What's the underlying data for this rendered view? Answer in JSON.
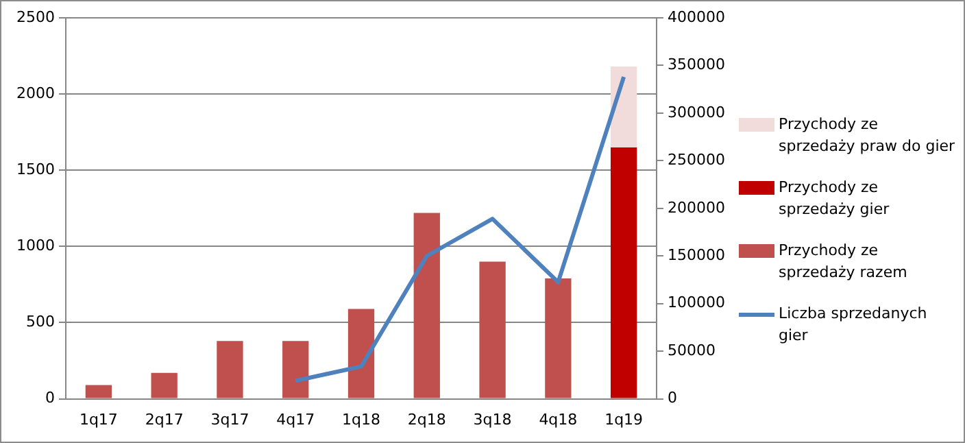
{
  "chart_data": {
    "type": "bar",
    "stacked": true,
    "grid": "y",
    "legend": "right",
    "marker": "none",
    "categories": [
      "1q17",
      "2q17",
      "3q17",
      "4q17",
      "1q18",
      "2q18",
      "3q18",
      "4q18",
      "1q19"
    ],
    "series": [
      {
        "name": "Przychody ze sprzedaży razem",
        "color": "#c0504d",
        "values": [
          90,
          170,
          380,
          380,
          590,
          1220,
          900,
          790,
          null
        ]
      },
      {
        "name": "Przychody ze sprzedaży gier",
        "color": "#c00000",
        "values": [
          null,
          null,
          null,
          null,
          null,
          null,
          null,
          null,
          1650
        ]
      },
      {
        "name": "Przychody ze sprzedaży praw do gier",
        "color": "#f2dcdb",
        "values": [
          null,
          null,
          null,
          null,
          null,
          null,
          null,
          null,
          530
        ]
      },
      {
        "name": "Liczba sprzedanych gier",
        "type": "line",
        "axis": "y2",
        "color": "#4f81bd",
        "values": [
          null,
          null,
          null,
          19000,
          34000,
          150000,
          189000,
          122500,
          338000
        ]
      }
    ],
    "ylim": [
      0,
      2500
    ],
    "yticks": [
      0,
      500,
      1000,
      1500,
      2000,
      2500
    ],
    "y2lim": [
      0,
      400000
    ],
    "y2ticks": [
      0,
      50000,
      100000,
      150000,
      200000,
      250000,
      300000,
      350000,
      400000
    ]
  }
}
